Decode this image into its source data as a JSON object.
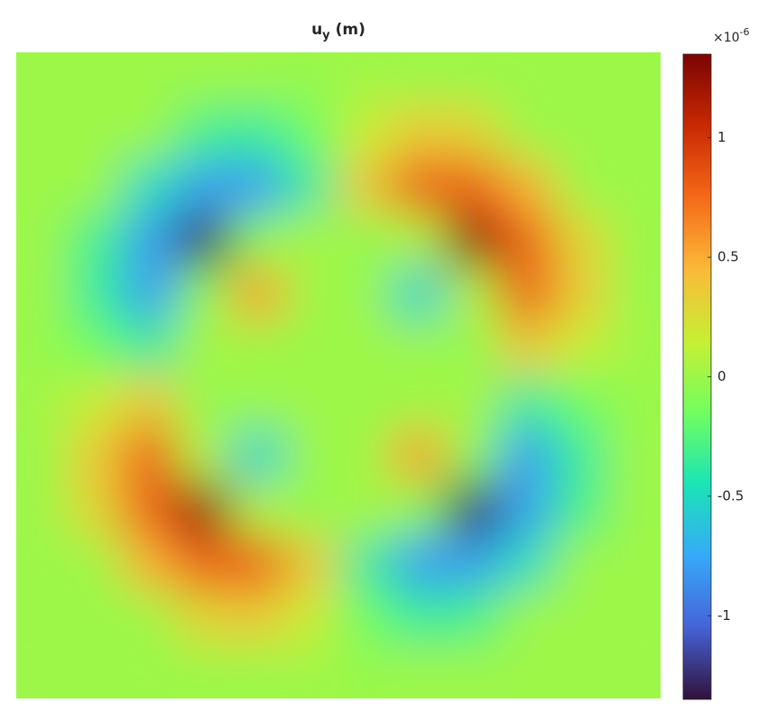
{
  "chart_data": {
    "type": "heatmap",
    "title": {
      "main": "u",
      "subscript": "y",
      "suffix": "(m)"
    },
    "colorbar_multiplier": {
      "base": "×10",
      "exponent": "-6"
    },
    "colormap": [
      "#30123b",
      "#4662d7",
      "#36aaf9",
      "#1ae4b6",
      "#72fe5e",
      "#c7ef34",
      "#fbb938",
      "#f56918",
      "#c92903",
      "#7a0403"
    ],
    "clim": [
      -1.35,
      1.35
    ],
    "cticks": [
      -1,
      -0.5,
      0,
      0.5,
      1
    ],
    "z": [
      [
        0,
        0,
        0,
        0,
        0,
        -0.02,
        0.02,
        0,
        0,
        0,
        0,
        0
      ],
      [
        0,
        0,
        0,
        -0.31,
        -0.36,
        -0.16,
        0.16,
        0.36,
        0.31,
        0,
        0,
        0
      ],
      [
        0,
        0,
        -0.49,
        -0.8,
        -0.81,
        -0.36,
        0.36,
        0.81,
        0.8,
        0.49,
        0,
        0
      ],
      [
        0,
        -0.31,
        -0.8,
        -1.27,
        -0.07,
        0.04,
        -0.04,
        0.07,
        1.27,
        0.8,
        0.31,
        0
      ],
      [
        0,
        -0.36,
        -0.81,
        -0.07,
        0.55,
        0,
        0,
        -0.55,
        0.07,
        0.81,
        0.36,
        0
      ],
      [
        -0.02,
        -0.16,
        -0.36,
        0.04,
        0,
        0,
        0,
        0,
        -0.04,
        0.36,
        0.16,
        0.02
      ],
      [
        0.02,
        0.16,
        0.36,
        -0.04,
        0,
        0,
        0,
        0,
        0.04,
        -0.36,
        -0.16,
        -0.02
      ],
      [
        0,
        0.36,
        0.81,
        0.07,
        -0.55,
        0,
        0,
        0.55,
        -0.07,
        -0.81,
        -0.36,
        0
      ],
      [
        0,
        0.31,
        0.8,
        1.27,
        0.07,
        -0.04,
        0.04,
        -0.07,
        -1.27,
        -0.8,
        -0.31,
        0
      ],
      [
        0,
        0,
        0.49,
        0.8,
        0.81,
        0.36,
        -0.36,
        -0.81,
        -0.8,
        -0.49,
        0,
        0
      ],
      [
        0,
        0,
        0,
        0.31,
        0.36,
        0.16,
        -0.16,
        -0.36,
        -0.31,
        0,
        0,
        0
      ],
      [
        0,
        0,
        0,
        0,
        0,
        0.02,
        -0.02,
        0,
        0,
        0,
        0,
        0
      ]
    ]
  }
}
